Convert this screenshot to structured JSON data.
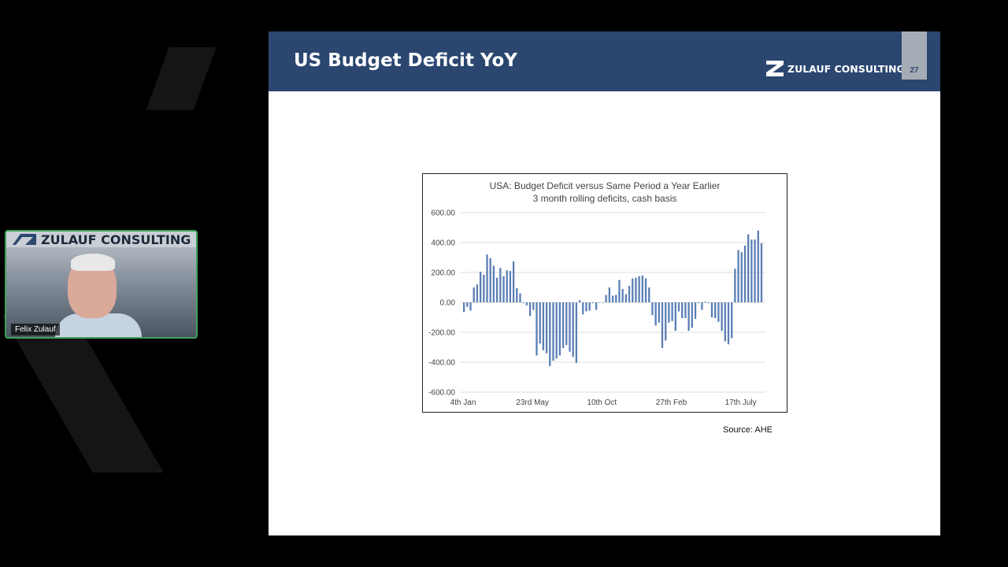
{
  "slide": {
    "title": "US Budget Deficit YoY",
    "brand": "ZULAUF CONSULTING",
    "page_number": "27",
    "source": "Source: AHE",
    "header_color": "#2b4770"
  },
  "video_tile": {
    "brand": "ZULAUF CONSULTING",
    "participant_name": "Felix Zulauf",
    "border_color": "#3fa35a"
  },
  "chart_data": {
    "type": "bar",
    "title": "USA: Budget Deficit versus Same Period a Year Earlier",
    "subtitle": "3 month rolling deficits, cash basis",
    "ylim": [
      -600,
      600
    ],
    "yticks": [
      "600.00",
      "400.00",
      "200.00",
      "0.00",
      "-200.00",
      "-400.00",
      "-600.00"
    ],
    "ytick_values": [
      600,
      400,
      200,
      0,
      -200,
      -400,
      -600
    ],
    "xtick_labels": [
      "4th Jan",
      "23rd May",
      "10th Oct",
      "27th Feb",
      "17th July"
    ],
    "xtick_indices": [
      0,
      21,
      42,
      63,
      84
    ],
    "grid": true,
    "bar_color": "#5b7fb5",
    "values": [
      -65,
      -30,
      -55,
      100,
      120,
      205,
      185,
      320,
      295,
      245,
      165,
      230,
      175,
      215,
      210,
      275,
      95,
      60,
      -5,
      -20,
      -90,
      -50,
      -355,
      -275,
      -320,
      -340,
      -425,
      -390,
      -375,
      -355,
      -305,
      -285,
      -330,
      -365,
      -405,
      15,
      -80,
      -60,
      -55,
      -5,
      -50,
      0,
      0,
      50,
      100,
      45,
      50,
      150,
      90,
      55,
      110,
      160,
      165,
      175,
      180,
      160,
      100,
      -85,
      -155,
      -135,
      -305,
      -255,
      -135,
      -125,
      -190,
      -60,
      -105,
      -105,
      -190,
      -170,
      -110,
      -5,
      -50,
      5,
      -5,
      -100,
      -105,
      -130,
      -190,
      -260,
      -280,
      -240,
      225,
      350,
      335,
      380,
      455,
      420,
      420,
      480,
      395
    ]
  }
}
